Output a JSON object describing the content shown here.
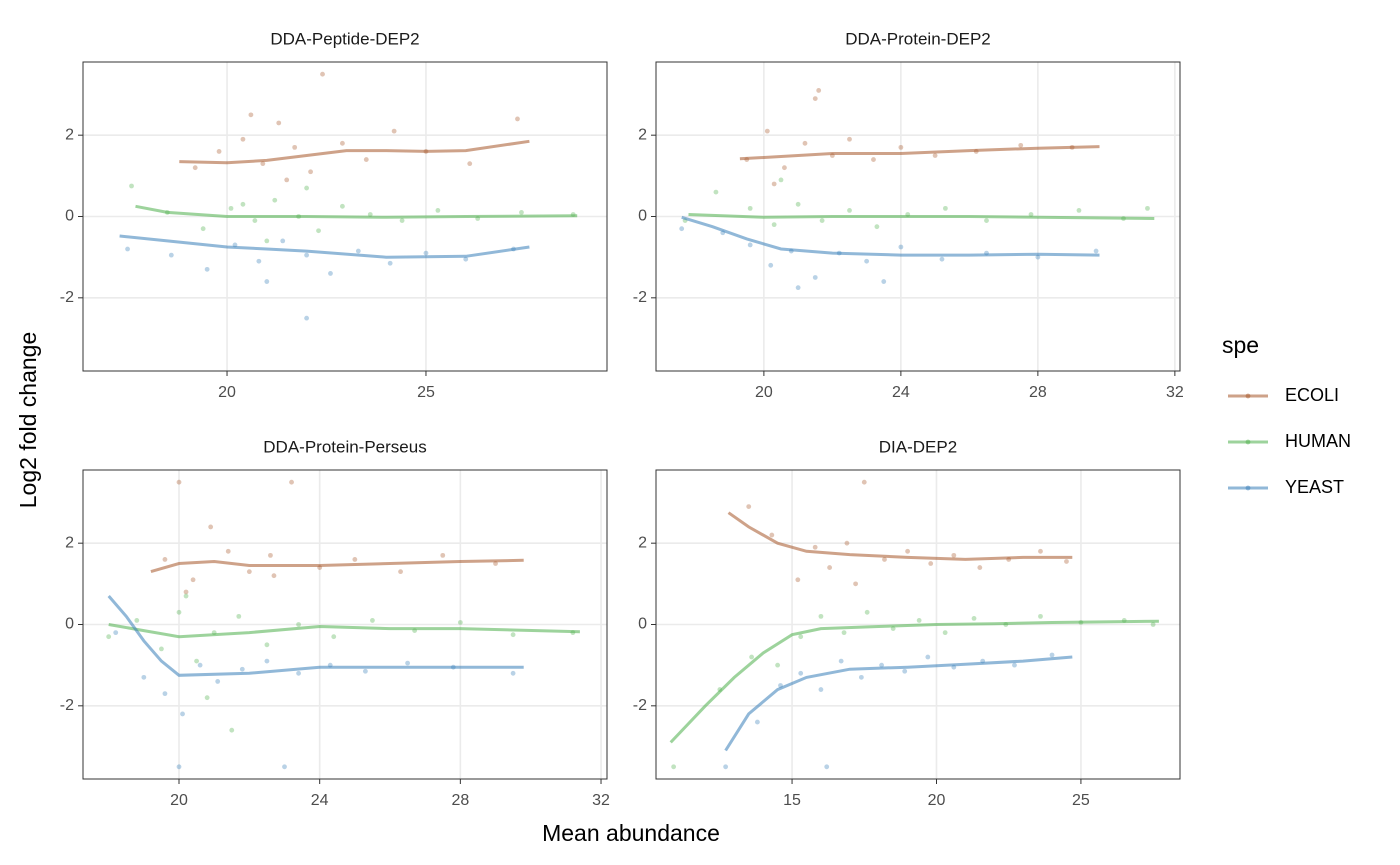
{
  "x_label": "Mean abundance",
  "y_label": "Log2 fold change",
  "legend_title": "spe",
  "chart_data": [
    {
      "type": "scatter",
      "title": "DDA-Peptide-DEP2",
      "xlim": [
        16.38,
        29.55
      ],
      "xticks": [
        20,
        25
      ],
      "ylim": [
        -3.8,
        3.8
      ],
      "yticks": [
        -2,
        0,
        2
      ],
      "grid": true,
      "series": [
        {
          "name": "ECOLI",
          "color": "#A65628",
          "x": [
            19.2,
            19.8,
            20.4,
            20.9,
            21.3,
            21.7,
            22.1,
            22.4,
            22.9,
            23.5,
            24.2,
            25.0,
            26.1,
            27.3,
            21.5,
            20.6
          ],
          "values": [
            1.2,
            1.6,
            1.9,
            1.3,
            2.3,
            1.7,
            1.1,
            3.5,
            1.8,
            1.4,
            2.1,
            1.6,
            1.3,
            2.4,
            0.9,
            2.5
          ],
          "trend_x": [
            18.8,
            20,
            21,
            22,
            23,
            24,
            25,
            26,
            27.6
          ],
          "trend": [
            1.35,
            1.32,
            1.38,
            1.5,
            1.62,
            1.62,
            1.6,
            1.62,
            1.85
          ]
        },
        {
          "name": "HUMAN",
          "color": "#4DAF4A",
          "x": [
            17.6,
            18.5,
            19.4,
            20.1,
            20.7,
            21.2,
            21.8,
            22.3,
            22.9,
            23.6,
            24.4,
            25.3,
            26.3,
            27.4,
            28.7,
            21.0,
            22.0,
            20.4
          ],
          "values": [
            0.75,
            0.1,
            -0.3,
            0.2,
            -0.1,
            0.4,
            0.0,
            -0.35,
            0.25,
            0.05,
            -0.1,
            0.15,
            -0.05,
            0.1,
            0.05,
            -0.6,
            0.7,
            0.3
          ],
          "trend_x": [
            17.7,
            18.5,
            20,
            22,
            24,
            26,
            28.8
          ],
          "trend": [
            0.25,
            0.1,
            0.0,
            0.0,
            -0.02,
            0.0,
            0.02
          ]
        },
        {
          "name": "YEAST",
          "color": "#377EB8",
          "x": [
            17.5,
            18.6,
            19.5,
            20.2,
            20.8,
            21.4,
            22.0,
            22.6,
            23.3,
            24.1,
            25.0,
            26.0,
            27.2,
            22.0,
            21.0
          ],
          "values": [
            -0.8,
            -0.95,
            -1.3,
            -0.7,
            -1.1,
            -0.6,
            -0.95,
            -1.4,
            -0.85,
            -1.15,
            -0.9,
            -1.05,
            -0.8,
            -2.5,
            -1.6
          ],
          "trend_x": [
            17.3,
            18.5,
            20,
            21,
            22,
            24,
            26,
            27.6
          ],
          "trend": [
            -0.48,
            -0.6,
            -0.75,
            -0.8,
            -0.85,
            -1.0,
            -0.98,
            -0.75
          ]
        }
      ]
    },
    {
      "type": "scatter",
      "title": "DDA-Protein-DEP2",
      "xlim": [
        16.85,
        32.15
      ],
      "xticks": [
        20,
        24,
        28,
        32
      ],
      "ylim": [
        -3.8,
        3.8
      ],
      "yticks": [
        -2,
        0,
        2
      ],
      "grid": true,
      "series": [
        {
          "name": "ECOLI",
          "color": "#A65628",
          "x": [
            19.5,
            20.1,
            20.6,
            21.2,
            21.6,
            22.0,
            22.5,
            23.2,
            24.0,
            25.0,
            26.2,
            27.5,
            29.0,
            21.5,
            20.3
          ],
          "values": [
            1.4,
            2.1,
            1.2,
            1.8,
            3.1,
            1.5,
            1.9,
            1.4,
            1.7,
            1.5,
            1.6,
            1.75,
            1.7,
            2.9,
            0.8
          ],
          "trend_x": [
            19.3,
            20,
            22,
            24,
            26,
            28,
            29.8
          ],
          "trend": [
            1.42,
            1.45,
            1.55,
            1.55,
            1.62,
            1.68,
            1.72
          ]
        },
        {
          "name": "HUMAN",
          "color": "#4DAF4A",
          "x": [
            17.7,
            18.6,
            19.6,
            20.3,
            21.0,
            21.7,
            22.5,
            23.3,
            24.2,
            25.3,
            26.5,
            27.8,
            29.2,
            30.5,
            31.2,
            20.5
          ],
          "values": [
            -0.1,
            0.6,
            0.2,
            -0.2,
            0.3,
            -0.1,
            0.15,
            -0.25,
            0.05,
            0.2,
            -0.1,
            0.05,
            0.15,
            -0.05,
            0.2,
            0.9
          ],
          "trend_x": [
            17.8,
            20,
            22,
            24,
            26,
            28,
            31.4
          ],
          "trend": [
            0.05,
            -0.02,
            0,
            0,
            0,
            -0.02,
            -0.05
          ]
        },
        {
          "name": "YEAST",
          "color": "#377EB8",
          "x": [
            17.6,
            18.8,
            19.6,
            20.2,
            20.8,
            21.5,
            22.2,
            23.0,
            24.0,
            25.2,
            26.5,
            28.0,
            29.7,
            21.0,
            23.5
          ],
          "values": [
            -0.3,
            -0.4,
            -0.7,
            -1.2,
            -0.85,
            -1.5,
            -0.9,
            -1.1,
            -0.75,
            -1.05,
            -0.9,
            -1.0,
            -0.85,
            -1.75,
            -1.6
          ],
          "trend_x": [
            17.6,
            18.5,
            19.5,
            20.5,
            22,
            24,
            26,
            28,
            29.8
          ],
          "trend": [
            -0.02,
            -0.25,
            -0.55,
            -0.8,
            -0.9,
            -0.95,
            -0.95,
            -0.93,
            -0.95
          ]
        }
      ]
    },
    {
      "type": "scatter",
      "title": "DDA-Protein-Perseus",
      "xlim": [
        17.27,
        32.17
      ],
      "xticks": [
        20,
        24,
        28,
        32
      ],
      "ylim": [
        -3.8,
        3.8
      ],
      "yticks": [
        -2,
        0,
        2
      ],
      "grid": true,
      "series": [
        {
          "name": "ECOLI",
          "color": "#A65628",
          "x": [
            19.6,
            20.0,
            20.4,
            20.9,
            21.4,
            22.0,
            22.6,
            23.2,
            24.0,
            25.0,
            26.3,
            27.5,
            29.0,
            20.2,
            22.7
          ],
          "values": [
            1.6,
            3.5,
            1.1,
            2.4,
            1.8,
            1.3,
            1.7,
            3.5,
            1.4,
            1.6,
            1.3,
            1.7,
            1.5,
            0.8,
            1.2
          ],
          "trend_x": [
            19.2,
            20,
            21,
            22,
            24,
            26,
            28,
            29.8
          ],
          "trend": [
            1.3,
            1.5,
            1.55,
            1.45,
            1.45,
            1.5,
            1.55,
            1.58
          ]
        },
        {
          "name": "HUMAN",
          "color": "#4DAF4A",
          "x": [
            18.0,
            18.8,
            19.5,
            20.0,
            20.5,
            21.0,
            21.7,
            22.5,
            23.4,
            24.4,
            25.5,
            26.7,
            28.0,
            29.5,
            31.2,
            20.8,
            21.5,
            20.2
          ],
          "values": [
            -0.3,
            0.1,
            -0.6,
            0.3,
            -0.9,
            -0.2,
            0.2,
            -0.5,
            0.0,
            -0.3,
            0.1,
            -0.15,
            0.05,
            -0.25,
            -0.2,
            -1.8,
            -2.6,
            0.7
          ],
          "trend_x": [
            18,
            19,
            20,
            22,
            24,
            26,
            28,
            31.4
          ],
          "trend": [
            0.0,
            -0.15,
            -0.3,
            -0.2,
            -0.05,
            -0.1,
            -0.1,
            -0.18
          ]
        },
        {
          "name": "YEAST",
          "color": "#377EB8",
          "x": [
            18.2,
            19.0,
            19.6,
            20.1,
            20.6,
            21.1,
            21.8,
            22.5,
            23.4,
            24.3,
            25.3,
            26.5,
            27.8,
            29.5,
            20.0,
            23.0
          ],
          "values": [
            -0.2,
            -1.3,
            -1.7,
            -2.2,
            -1.0,
            -1.4,
            -1.1,
            -0.9,
            -1.2,
            -1.0,
            -1.15,
            -0.95,
            -1.05,
            -1.2,
            -3.5,
            -3.5
          ],
          "trend_x": [
            18,
            18.5,
            19,
            19.5,
            20,
            22,
            24,
            26,
            28,
            29.8
          ],
          "trend": [
            0.7,
            0.2,
            -0.4,
            -0.9,
            -1.25,
            -1.2,
            -1.05,
            -1.05,
            -1.05,
            -1.05
          ]
        }
      ]
    },
    {
      "type": "scatter",
      "title": "DIA-DEP2",
      "xlim": [
        10.29,
        28.43
      ],
      "xticks": [
        15,
        20,
        25
      ],
      "ylim": [
        -3.8,
        3.8
      ],
      "yticks": [
        -2,
        0,
        2
      ],
      "grid": true,
      "series": [
        {
          "name": "ECOLI",
          "color": "#A65628",
          "x": [
            13.5,
            14.3,
            15.2,
            15.8,
            16.3,
            16.9,
            17.5,
            18.2,
            19.0,
            19.8,
            20.6,
            21.5,
            22.5,
            23.6,
            24.5,
            17.2
          ],
          "values": [
            2.9,
            2.2,
            1.1,
            1.9,
            1.4,
            2.0,
            3.5,
            1.6,
            1.8,
            1.5,
            1.7,
            1.4,
            1.6,
            1.8,
            1.55,
            1.0
          ],
          "trend_x": [
            12.8,
            13.5,
            14.5,
            15.5,
            17,
            19,
            21,
            23,
            24.7
          ],
          "trend": [
            2.75,
            2.4,
            2.0,
            1.8,
            1.72,
            1.65,
            1.6,
            1.65,
            1.65
          ]
        },
        {
          "name": "HUMAN",
          "color": "#4DAF4A",
          "x": [
            10.9,
            12.5,
            13.6,
            14.5,
            15.3,
            16.0,
            16.8,
            17.6,
            18.5,
            19.4,
            20.3,
            21.3,
            22.4,
            23.6,
            25.0,
            26.5,
            27.5
          ],
          "values": [
            -3.5,
            -1.6,
            -0.8,
            -1.0,
            -0.3,
            0.2,
            -0.2,
            0.3,
            -0.1,
            0.1,
            -0.2,
            0.15,
            0.0,
            0.2,
            0.05,
            0.1,
            0.0
          ],
          "trend_x": [
            10.8,
            12,
            13,
            14,
            15,
            16,
            18,
            20,
            22,
            24,
            27.7
          ],
          "trend": [
            -2.9,
            -2,
            -1.3,
            -0.7,
            -0.25,
            -0.1,
            -0.05,
            0,
            0.02,
            0.05,
            0.08
          ]
        },
        {
          "name": "YEAST",
          "color": "#377EB8",
          "x": [
            12.7,
            13.8,
            14.6,
            15.3,
            16.0,
            16.7,
            17.4,
            18.1,
            18.9,
            19.7,
            20.6,
            21.6,
            22.7,
            24.0,
            16.2
          ],
          "values": [
            -3.5,
            -2.4,
            -1.5,
            -1.2,
            -1.6,
            -0.9,
            -1.3,
            -1.0,
            -1.15,
            -0.8,
            -1.05,
            -0.9,
            -1.0,
            -0.75,
            -3.5
          ],
          "trend_x": [
            12.7,
            13.5,
            14.5,
            15.5,
            17,
            19,
            21,
            23,
            24.7
          ],
          "trend": [
            -3.1,
            -2.2,
            -1.6,
            -1.3,
            -1.1,
            -1.05,
            -0.98,
            -0.9,
            -0.8
          ]
        }
      ]
    }
  ]
}
